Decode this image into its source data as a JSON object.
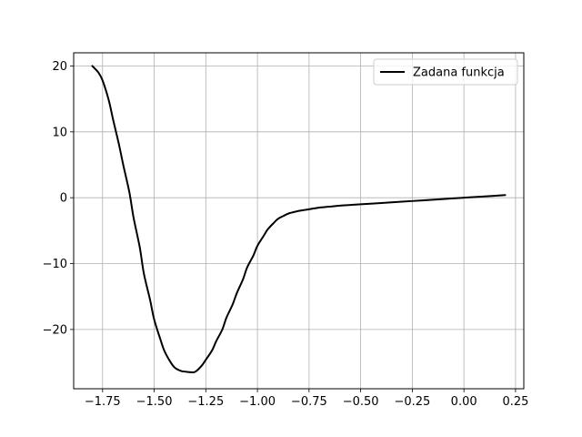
{
  "chart_data": {
    "type": "line",
    "title": "",
    "xlabel": "",
    "ylabel": "",
    "xlim": [
      -1.89,
      0.29
    ],
    "ylim": [
      -29.0,
      22.0
    ],
    "xticks": [
      -1.75,
      -1.5,
      -1.25,
      -1.0,
      -0.75,
      -0.5,
      -0.25,
      0.0,
      0.25
    ],
    "xtick_labels": [
      "−1.75",
      "−1.50",
      "−1.25",
      "−1.00",
      "−0.75",
      "−0.50",
      "−0.25",
      "0.00",
      "0.25"
    ],
    "yticks": [
      20,
      10,
      0,
      -10,
      -20
    ],
    "ytick_labels": [
      "20",
      "10",
      "0",
      "−10",
      "−20"
    ],
    "grid": true,
    "legend_position": "top-right",
    "series": [
      {
        "name": "Zadana funkcja",
        "color": "#000000",
        "x": [
          -1.8,
          -1.77,
          -1.75,
          -1.72,
          -1.7,
          -1.67,
          -1.65,
          -1.62,
          -1.6,
          -1.57,
          -1.55,
          -1.52,
          -1.5,
          -1.47,
          -1.45,
          -1.42,
          -1.4,
          -1.37,
          -1.35,
          -1.32,
          -1.3,
          -1.27,
          -1.25,
          -1.22,
          -1.2,
          -1.17,
          -1.15,
          -1.12,
          -1.1,
          -1.07,
          -1.05,
          -1.02,
          -1.0,
          -0.97,
          -0.95,
          -0.92,
          -0.9,
          -0.87,
          -0.85,
          -0.82,
          -0.8,
          -0.77,
          -0.75,
          -0.72,
          -0.7,
          -0.65,
          -0.6,
          -0.55,
          -0.5,
          -0.4,
          -0.3,
          -0.2,
          -0.1,
          0.0,
          0.1,
          0.2
        ],
        "y": [
          20.0,
          19.0,
          17.8,
          14.8,
          12.0,
          8.0,
          5.0,
          0.8,
          -3.0,
          -7.5,
          -11.5,
          -15.5,
          -18.5,
          -21.5,
          -23.3,
          -25.0,
          -25.8,
          -26.3,
          -26.4,
          -26.5,
          -26.4,
          -25.5,
          -24.6,
          -23.2,
          -21.8,
          -20.0,
          -18.2,
          -16.2,
          -14.5,
          -12.4,
          -10.6,
          -8.8,
          -7.3,
          -5.8,
          -4.8,
          -3.8,
          -3.2,
          -2.7,
          -2.4,
          -2.15,
          -2.0,
          -1.85,
          -1.75,
          -1.6,
          -1.5,
          -1.35,
          -1.2,
          -1.1,
          -1.0,
          -0.8,
          -0.6,
          -0.4,
          -0.2,
          0.0,
          0.2,
          0.4
        ]
      }
    ]
  }
}
